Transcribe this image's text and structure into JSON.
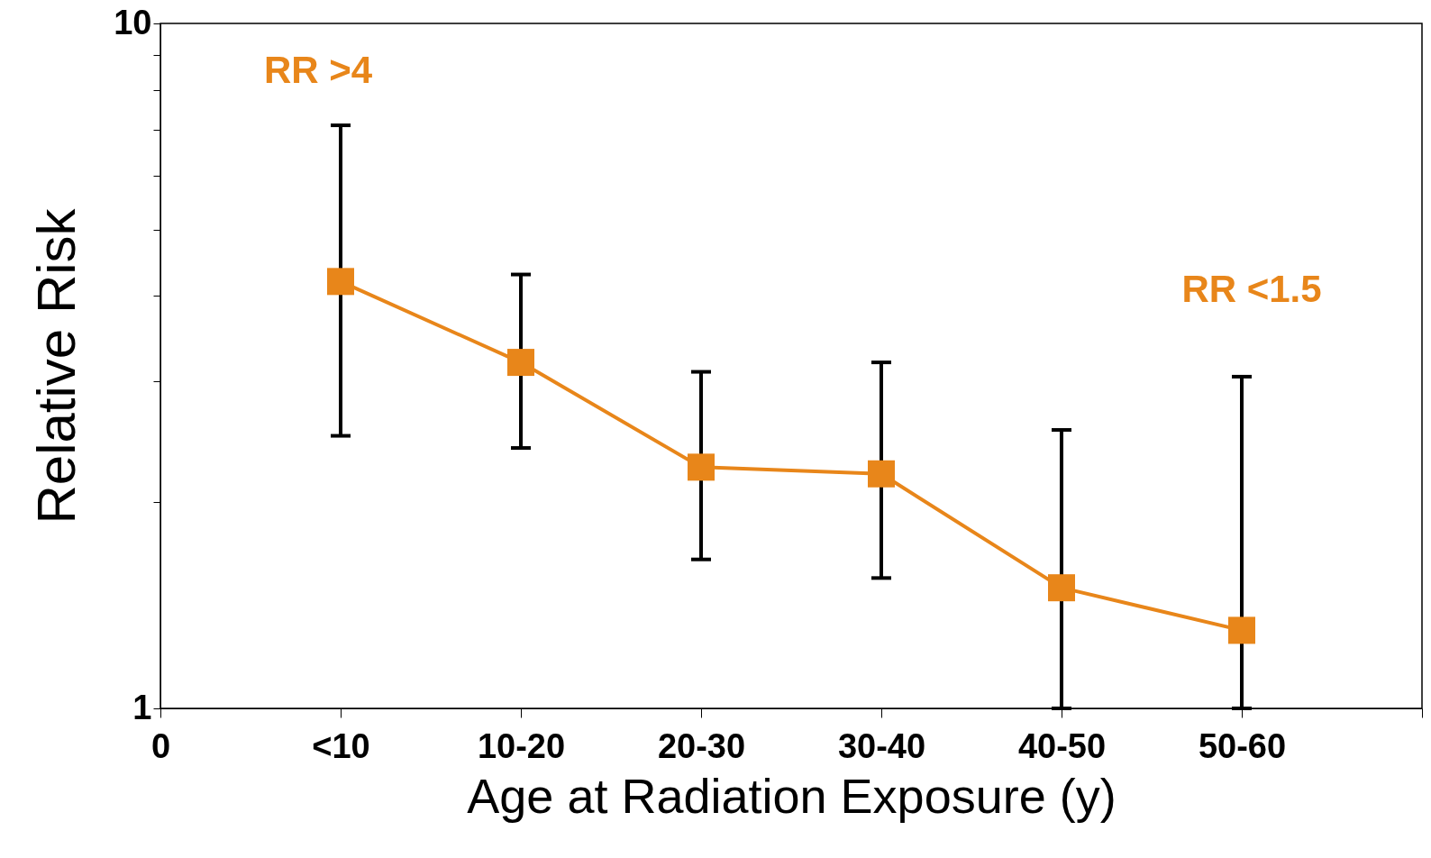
{
  "chart_data": {
    "type": "line",
    "xlabel": "Age at Radiation Exposure (y)",
    "ylabel": "Relative Risk",
    "categories": [
      "0",
      "<10",
      "10-20",
      "20-30",
      "30-40",
      "40-50",
      "50-60",
      null
    ],
    "series": [
      {
        "color": "#e8861a",
        "values": [
          null,
          4.2,
          3.2,
          2.25,
          2.2,
          1.5,
          1.3,
          null
        ],
        "errors": [
          null,
          [
            2.5,
            7.1
          ],
          [
            2.4,
            4.3
          ],
          [
            1.65,
            3.1
          ],
          [
            1.55,
            3.2
          ],
          [
            1.0,
            2.55
          ],
          [
            1.0,
            3.05
          ],
          null
        ]
      }
    ],
    "log": true,
    "ylim": [
      1,
      10
    ],
    "yticks": [
      1,
      {
        "value": 2,
        "label": null
      },
      {
        "value": 3,
        "label": null
      },
      {
        "value": 4,
        "label": null
      },
      {
        "value": 5,
        "label": null
      },
      {
        "value": 6,
        "label": null
      },
      {
        "value": 7,
        "label": null
      },
      {
        "value": 8,
        "label": null
      },
      {
        "value": 9,
        "label": null
      },
      10
    ],
    "marker": "square",
    "line_style": "solid",
    "grid": false,
    "annotations": [
      "RR >4",
      "RR <1.5"
    ]
  }
}
